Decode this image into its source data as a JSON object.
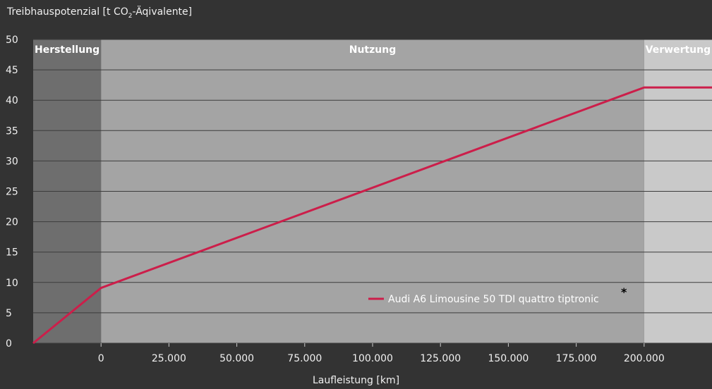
{
  "chart_data": {
    "type": "line",
    "ylabel_prefix": "Treibhauspotenzial [t CO",
    "ylabel_sub": "2",
    "ylabel_suffix": "-Äqivalente]",
    "xlabel": "Laufleistung [km]",
    "ylim": [
      0,
      50
    ],
    "yticks": [
      0,
      5,
      10,
      15,
      20,
      25,
      30,
      35,
      40,
      45,
      50
    ],
    "xlim": [
      -25000,
      225000
    ],
    "xticks": [
      0,
      25000,
      50000,
      75000,
      100000,
      125000,
      150000,
      175000,
      200000
    ],
    "xtick_labels": [
      "0",
      "25.000",
      "50.000",
      "75.000",
      "100.000",
      "125.000",
      "150.000",
      "175.000",
      "200.000"
    ],
    "phases": [
      {
        "label": "Herstellung",
        "from": -25000,
        "to": 0,
        "color": "#6e6e6e"
      },
      {
        "label": "Nutzung",
        "from": 0,
        "to": 200000,
        "color": "#a4a4a4"
      },
      {
        "label": "Verwertung",
        "from": 200000,
        "to": 225000,
        "color": "#c9c9c9"
      }
    ],
    "series": [
      {
        "name": "Audi A6 Limousine 50 TDI quattro tiptronic",
        "color": "#cc1e4a",
        "x": [
          -25000,
          0,
          200000,
          225000
        ],
        "y": [
          0,
          9.1,
          42.1,
          42.1
        ]
      }
    ],
    "legend_marker": "*",
    "legend_position": "lower-right",
    "grid": true
  }
}
